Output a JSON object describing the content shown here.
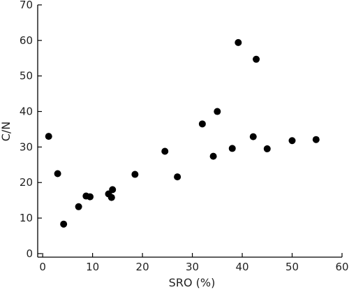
{
  "chart_data": {
    "type": "scatter",
    "title": "",
    "xlabel": "SRO (%)",
    "ylabel": "C/N",
    "xlim": [
      -1,
      60
    ],
    "ylim": [
      -1,
      70
    ],
    "xticks": [
      0,
      10,
      20,
      30,
      40,
      50,
      60
    ],
    "yticks": [
      0,
      10,
      20,
      30,
      40,
      50,
      60,
      70
    ],
    "grid": false,
    "point_color": "#000000",
    "series": [
      {
        "x": [
          1.2,
          3,
          4.2,
          7.2,
          8.7,
          9.5,
          13.2,
          13.8,
          14,
          18.5,
          24.5,
          27,
          32,
          34.2,
          35,
          38,
          39.2,
          42.2,
          42.8,
          45,
          50,
          54.8
        ],
        "y": [
          33,
          22.5,
          8.3,
          13.2,
          16.2,
          16,
          16.8,
          15.8,
          18,
          22.3,
          28.8,
          21.6,
          36.5,
          27.4,
          40,
          29.6,
          59.4,
          32.9,
          54.7,
          29.5,
          31.8,
          32.1
        ]
      }
    ]
  }
}
